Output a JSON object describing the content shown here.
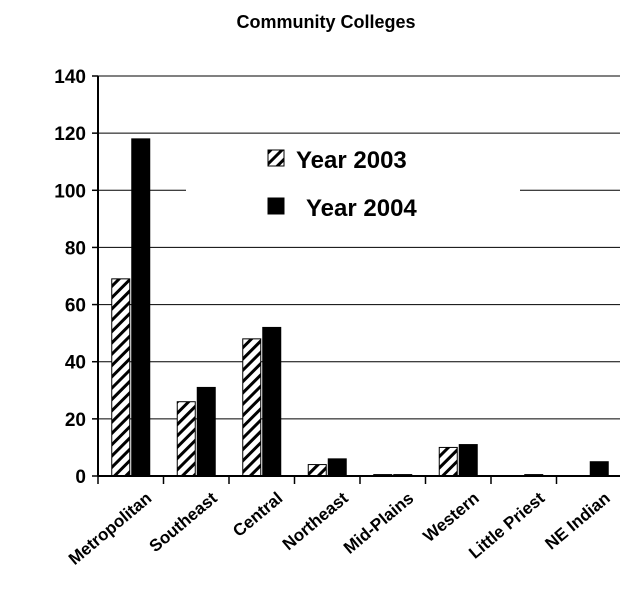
{
  "chart_data": {
    "type": "bar",
    "title": "Community Colleges",
    "categories": [
      "Metropolitan",
      "Southeast",
      "Central",
      "Northeast",
      "Mid-Plains",
      "Western",
      "Little Priest",
      "NE Indian"
    ],
    "series": [
      {
        "name": "Year 2003",
        "values": [
          69,
          26,
          48,
          4,
          0.5,
          10,
          0,
          0
        ],
        "fill": "hatched",
        "color": "#000000"
      },
      {
        "name": "Year 2004",
        "values": [
          118,
          31,
          52,
          6,
          0.5,
          11,
          0.5,
          5
        ],
        "fill": "solid",
        "color": "#000000"
      }
    ],
    "ylim": [
      0,
      140
    ],
    "yticks": [
      0,
      20,
      40,
      60,
      80,
      100,
      120,
      140
    ],
    "grid": true,
    "legend_position": "top-center"
  }
}
